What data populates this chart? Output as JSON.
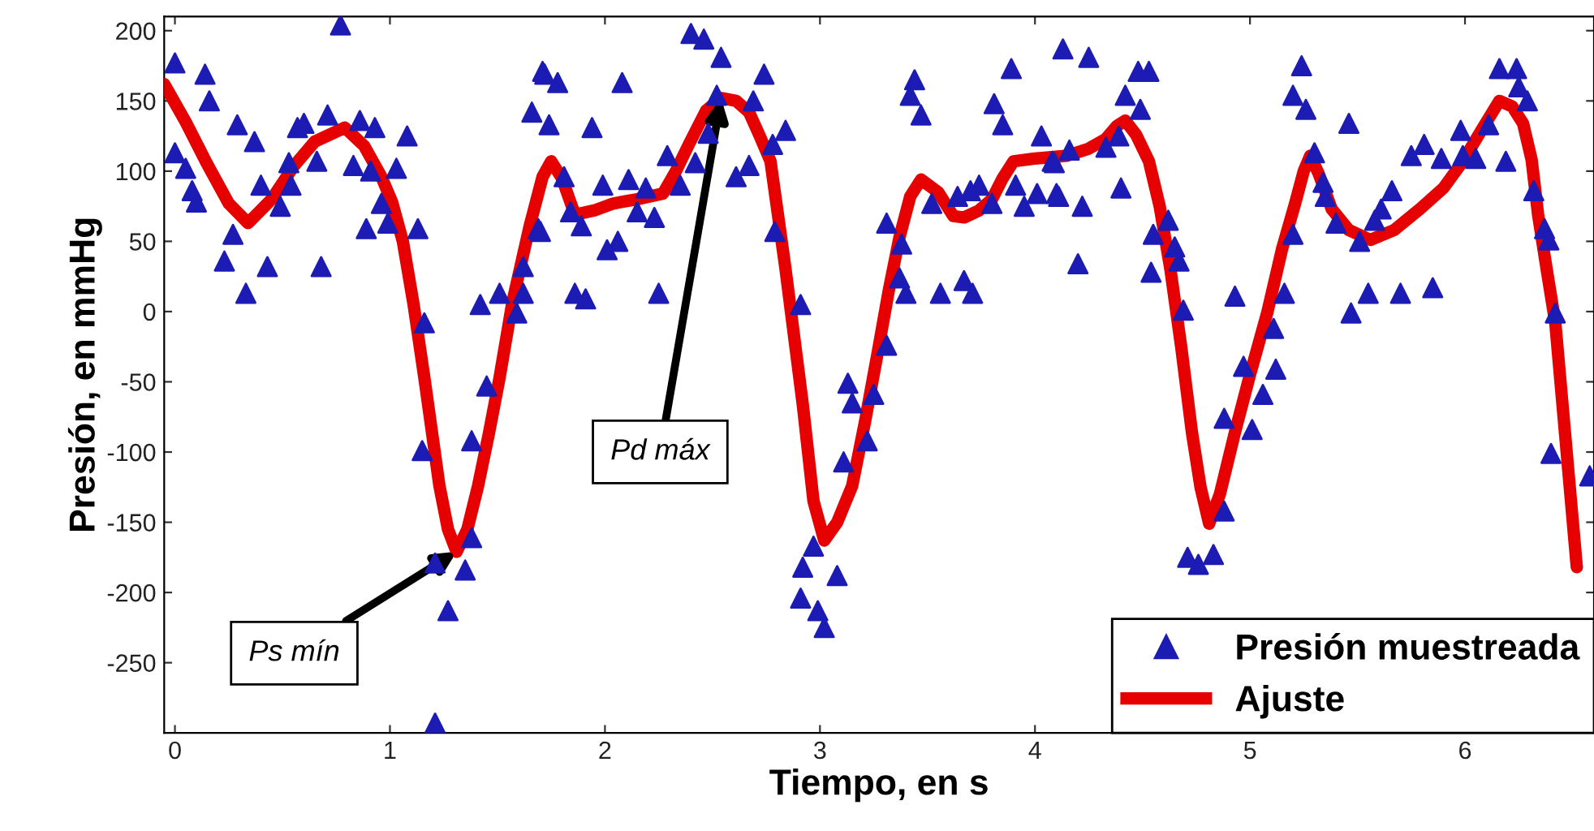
{
  "chart_data": {
    "type": "scatter",
    "xlabel": "Tiempo, en s",
    "ylabel": "Presión, en mmHg",
    "xlim": [
      -0.05,
      6.6
    ],
    "ylim": [
      -300,
      210
    ],
    "xticks": [
      0,
      1,
      2,
      3,
      4,
      5,
      6
    ],
    "yticks": [
      -250,
      -200,
      -150,
      -100,
      -50,
      0,
      50,
      100,
      150,
      200
    ],
    "grid": false,
    "legend": "bottom right",
    "annotations": [
      {
        "text": "Ps mín",
        "x": 1.31,
        "y": -171
      },
      {
        "text": "Pd máx",
        "x": 2.54,
        "y": 152
      }
    ],
    "series": [
      {
        "name": "Presión muestreada",
        "type": "scatter",
        "marker": "triangle",
        "color": "#1c1cb4",
        "x": [
          0.0,
          0.14,
          0.16,
          0.29,
          0.37,
          0.0,
          0.05,
          0.08,
          0.1,
          0.27,
          0.23,
          0.33,
          0.4,
          0.43,
          0.49,
          0.54,
          0.53,
          0.57,
          0.6,
          0.66,
          0.71,
          0.68,
          0.77,
          0.83,
          0.86,
          0.93,
          0.91,
          0.89,
          0.96,
          0.99,
          1.03,
          1.08,
          1.13,
          1.16,
          1.15,
          1.21,
          1.27,
          1.21,
          1.35,
          1.38,
          1.38,
          1.45,
          1.42,
          1.51,
          1.59,
          1.62,
          1.62,
          1.69,
          1.66,
          1.71,
          1.74,
          1.72,
          1.78,
          1.7,
          1.81,
          1.84,
          1.89,
          1.86,
          1.91,
          1.94,
          1.99,
          2.01,
          2.06,
          2.08,
          2.11,
          2.15,
          2.19,
          2.23,
          2.25,
          2.29,
          2.35,
          2.4,
          2.42,
          2.46,
          2.52,
          2.54,
          2.48,
          2.61,
          2.67,
          2.69,
          2.74,
          2.78,
          2.84,
          2.79,
          2.91,
          2.97,
          2.92,
          3.08,
          2.91,
          2.99,
          3.02,
          3.11,
          3.13,
          3.15,
          3.22,
          3.25,
          3.31,
          3.31,
          3.38,
          3.37,
          3.4,
          3.44,
          3.42,
          3.47,
          3.52,
          3.56,
          3.64,
          3.67,
          3.71,
          3.7,
          3.74,
          3.8,
          3.81,
          3.85,
          3.89,
          3.91,
          3.95,
          4.01,
          4.03,
          4.1,
          4.13,
          4.09,
          4.25,
          4.08,
          4.16,
          4.11,
          4.22,
          4.2,
          4.33,
          4.39,
          4.4,
          4.42,
          4.48,
          4.53,
          4.49,
          4.62,
          4.55,
          4.65,
          4.67,
          4.54,
          4.69,
          4.71,
          4.76,
          4.83,
          4.88,
          4.88,
          5.01,
          4.93,
          4.97,
          5.06,
          5.12,
          5.11,
          5.16,
          5.2,
          5.24,
          5.2,
          5.26,
          5.3,
          5.34,
          5.35,
          5.4,
          5.46,
          5.51,
          5.47,
          5.55,
          5.58,
          5.61,
          5.66,
          5.7,
          5.75,
          5.81,
          5.85,
          5.89,
          5.98,
          5.99,
          6.05,
          6.11,
          6.16,
          6.24,
          6.25,
          6.29,
          6.19,
          6.32,
          6.37,
          6.39,
          6.42,
          6.4,
          6.58
        ],
        "values": [
          177,
          169,
          150,
          133,
          121,
          113,
          102,
          86,
          78,
          55,
          36,
          13,
          90,
          32,
          75,
          90,
          106,
          131,
          134,
          107,
          140,
          32,
          204,
          104,
          136,
          131,
          100,
          59,
          77,
          63,
          102,
          125,
          59,
          -8,
          -99,
          -179,
          -213,
          -293,
          -184,
          -161,
          -92,
          -53,
          5,
          13,
          -1,
          13,
          32,
          59,
          142,
          171,
          133,
          169,
          163,
          57,
          96,
          71,
          61,
          13,
          9,
          131,
          90,
          44,
          50,
          163,
          94,
          71,
          88,
          67,
          13,
          111,
          90,
          198,
          106,
          194,
          154,
          181,
          127,
          96,
          104,
          150,
          169,
          119,
          129,
          57,
          5,
          -167,
          -182,
          -188,
          -204,
          -213,
          -225,
          -107,
          -51,
          -65,
          -92,
          -59,
          -24,
          63,
          48,
          24,
          13,
          165,
          154,
          140,
          77,
          13,
          82,
          22,
          13,
          86,
          90,
          77,
          148,
          133,
          173,
          90,
          75,
          84,
          125,
          84,
          187,
          106,
          181,
          107,
          115,
          82,
          75,
          34,
          117,
          125,
          88,
          154,
          171,
          171,
          144,
          65,
          55,
          46,
          36,
          28,
          1,
          -175,
          -180,
          -173,
          -142,
          -76,
          -84,
          11,
          -39,
          -59,
          -41,
          -12,
          13,
          55,
          175,
          154,
          144,
          113,
          92,
          82,
          63,
          134,
          50,
          -1,
          13,
          65,
          73,
          86,
          13,
          111,
          119,
          17,
          109,
          129,
          111,
          109,
          133,
          173,
          173,
          160,
          150,
          107,
          86,
          59,
          51,
          -1,
          -101,
          -117
        ]
      },
      {
        "name": "Ajuste",
        "type": "line",
        "line_style": "solid",
        "color": "#e60000",
        "x": [
          -0.05,
          0.05,
          0.15,
          0.25,
          0.34,
          0.45,
          0.55,
          0.65,
          0.79,
          0.88,
          0.96,
          1.01,
          1.06,
          1.11,
          1.16,
          1.23,
          1.27,
          1.31,
          1.36,
          1.41,
          1.46,
          1.51,
          1.57,
          1.65,
          1.71,
          1.75,
          1.8,
          1.86,
          1.95,
          2.04,
          2.15,
          2.27,
          2.33,
          2.39,
          2.47,
          2.54,
          2.61,
          2.67,
          2.72,
          2.77,
          2.84,
          2.92,
          2.97,
          3.02,
          3.08,
          3.15,
          3.21,
          3.27,
          3.32,
          3.37,
          3.42,
          3.47,
          3.55,
          3.62,
          3.67,
          3.74,
          3.8,
          3.85,
          3.9,
          4.0,
          4.15,
          4.25,
          4.33,
          4.38,
          4.42,
          4.47,
          4.53,
          4.58,
          4.63,
          4.68,
          4.73,
          4.77,
          4.81,
          4.86,
          4.93,
          5.0,
          5.08,
          5.15,
          5.21,
          5.25,
          5.28,
          5.32,
          5.38,
          5.46,
          5.56,
          5.67,
          5.79,
          5.9,
          5.99,
          6.08,
          6.16,
          6.22,
          6.27,
          6.31,
          6.34,
          6.38,
          6.42,
          6.47,
          6.52
        ],
        "values": [
          162,
          135,
          105,
          77,
          63,
          80,
          103,
          121,
          131,
          118,
          96,
          78,
          50,
          5,
          -47,
          -124,
          -155,
          -171,
          -155,
          -124,
          -87,
          -47,
          7,
          61,
          96,
          107,
          95,
          69,
          72,
          77,
          80,
          84,
          100,
          119,
          143,
          152,
          150,
          142,
          125,
          107,
          30,
          -66,
          -135,
          -163,
          -150,
          -124,
          -78,
          -28,
          15,
          53,
          82,
          94,
          85,
          68,
          67,
          72,
          80,
          95,
          107,
          109,
          111,
          116,
          123,
          132,
          136,
          126,
          107,
          75,
          30,
          -25,
          -86,
          -125,
          -151,
          -130,
          -86,
          -45,
          -1,
          45,
          77,
          100,
          111,
          98,
          73,
          58,
          51,
          58,
          73,
          88,
          107,
          130,
          150,
          146,
          134,
          108,
          69,
          30,
          -8,
          -95,
          -182
        ]
      }
    ]
  }
}
